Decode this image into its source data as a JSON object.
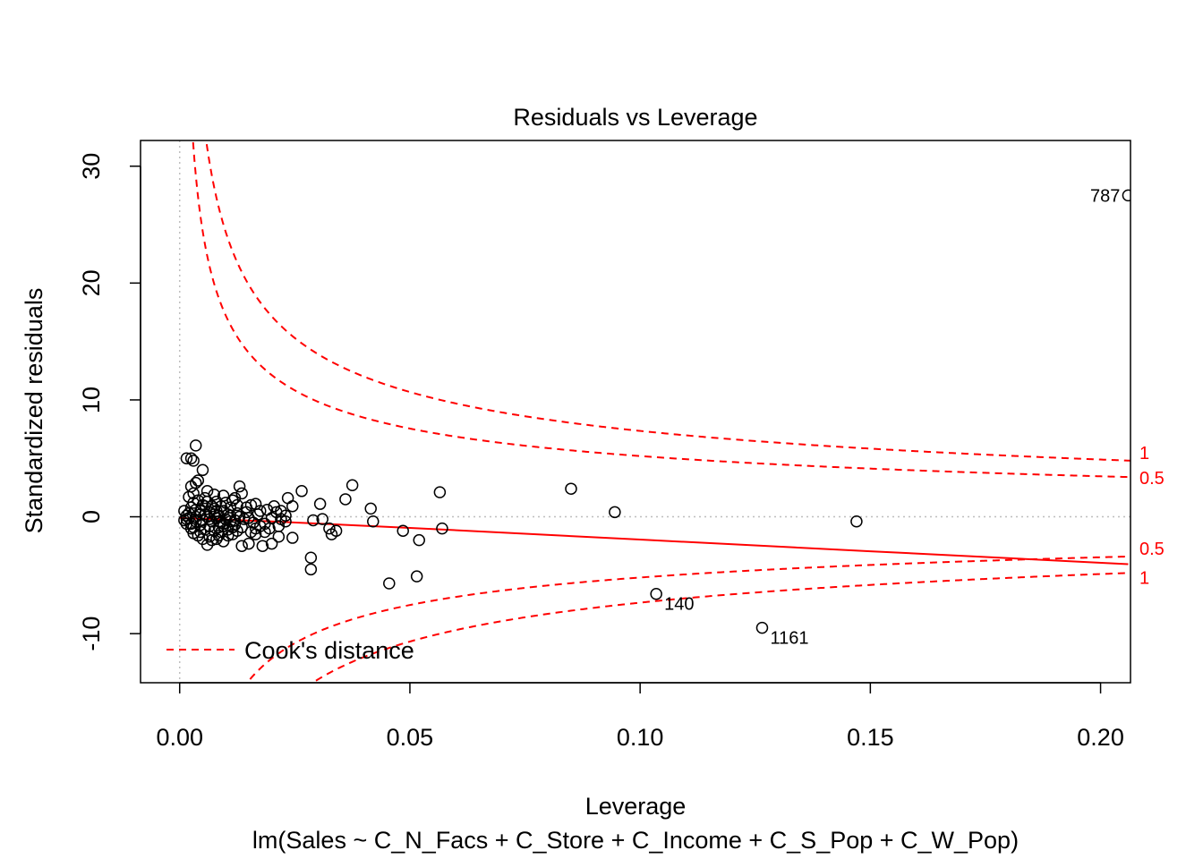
{
  "chart_data": {
    "type": "scatter",
    "title": "Residuals vs Leverage",
    "xlabel": "Leverage",
    "ylabel": "Standardized residuals",
    "subtitle": "lm(Sales ~ C_N_Facs + C_Store + C_Income + C_S_Pop + C_W_Pop)",
    "xlim": [
      -0.0085,
      0.2065
    ],
    "ylim": [
      -14.2,
      32.2
    ],
    "xticks": [
      0.0,
      0.05,
      0.1,
      0.15,
      0.2
    ],
    "xtick_labels": [
      "0.00",
      "0.05",
      "0.10",
      "0.15",
      "0.20"
    ],
    "yticks": [
      -10,
      0,
      10,
      20,
      30
    ],
    "ytick_labels": [
      "-10",
      "0",
      "10",
      "20",
      "30"
    ],
    "grid": false,
    "reference_lines": [
      {
        "axis": "x",
        "value": 0,
        "style": "dotted",
        "color": "#bebebe"
      },
      {
        "axis": "y",
        "value": 0,
        "style": "dotted",
        "color": "#bebebe"
      }
    ],
    "smooth_line": {
      "color": "#ff0000",
      "x": [
        0.0,
        0.02,
        0.05,
        0.1,
        0.15,
        0.206
      ],
      "y": [
        -0.1,
        -0.4,
        -0.95,
        -1.95,
        -2.95,
        -4.05
      ]
    },
    "cooks_distance": {
      "color": "#ff0000",
      "style": "dashed",
      "n_params": 6,
      "levels": [
        0.5,
        1
      ],
      "labels": [
        "0.5",
        "1"
      ],
      "label_positions": [
        "right-upper",
        "right-lower"
      ]
    },
    "legend": {
      "entries": [
        "Cook's distance"
      ],
      "placement": "bottom-left"
    },
    "labeled_points": [
      {
        "x": 0.206,
        "y": 27.5,
        "label": "787",
        "side": "left"
      },
      {
        "x": 0.1035,
        "y": -6.6,
        "label": "140",
        "side": "right"
      },
      {
        "x": 0.1265,
        "y": -9.5,
        "label": "1161",
        "side": "right"
      }
    ],
    "points": [
      [
        0.0015,
        5.0
      ],
      [
        0.003,
        4.8
      ],
      [
        0.0035,
        6.1
      ],
      [
        0.0025,
        5.0
      ],
      [
        0.005,
        4.0
      ],
      [
        0.004,
        3.1
      ],
      [
        0.0025,
        2.6
      ],
      [
        0.0035,
        2.9
      ],
      [
        0.006,
        2.2
      ],
      [
        0.0055,
        1.6
      ],
      [
        0.008,
        1.3
      ],
      [
        0.0075,
        1.9
      ],
      [
        0.0095,
        1.8
      ],
      [
        0.0115,
        1.4
      ],
      [
        0.013,
        2.6
      ],
      [
        0.0135,
        2.0
      ],
      [
        0.012,
        1.6
      ],
      [
        0.0155,
        1.0
      ],
      [
        0.0165,
        1.1
      ],
      [
        0.0175,
        0.5
      ],
      [
        0.019,
        0.6
      ],
      [
        0.021,
        0.4
      ],
      [
        0.022,
        0.5
      ],
      [
        0.023,
        0.1
      ],
      [
        0.0245,
        0.9
      ],
      [
        0.0235,
        1.6
      ],
      [
        0.0265,
        2.2
      ],
      [
        0.029,
        -0.3
      ],
      [
        0.0305,
        1.1
      ],
      [
        0.031,
        -0.2
      ],
      [
        0.0325,
        -1.0
      ],
      [
        0.033,
        -1.5
      ],
      [
        0.034,
        -1.2
      ],
      [
        0.036,
        1.5
      ],
      [
        0.0375,
        2.7
      ],
      [
        0.0415,
        0.7
      ],
      [
        0.042,
        -0.4
      ],
      [
        0.0455,
        -5.7
      ],
      [
        0.0485,
        -1.2
      ],
      [
        0.0515,
        -5.1
      ],
      [
        0.052,
        -2.0
      ],
      [
        0.0565,
        2.1
      ],
      [
        0.057,
        -1.0
      ],
      [
        0.0285,
        -3.5
      ],
      [
        0.0285,
        -4.5
      ],
      [
        0.0245,
        -1.8
      ],
      [
        0.0215,
        -1.7
      ],
      [
        0.02,
        -2.3
      ],
      [
        0.018,
        -2.5
      ],
      [
        0.0185,
        -1.3
      ],
      [
        0.0165,
        -1.5
      ],
      [
        0.015,
        -2.3
      ],
      [
        0.0135,
        -2.5
      ],
      [
        0.0115,
        -1.5
      ],
      [
        0.0095,
        -2.1
      ],
      [
        0.009,
        -1.3
      ],
      [
        0.008,
        -1.9
      ],
      [
        0.007,
        -2.0
      ],
      [
        0.006,
        -2.4
      ],
      [
        0.005,
        -1.9
      ],
      [
        0.004,
        -1.6
      ],
      [
        0.003,
        -1.4
      ],
      [
        0.0025,
        -1.0
      ],
      [
        0.0015,
        -0.6
      ],
      [
        0.001,
        -0.3
      ],
      [
        0.002,
        0.3
      ],
      [
        0.0025,
        0.8
      ],
      [
        0.003,
        1.2
      ],
      [
        0.0035,
        0.6
      ],
      [
        0.0045,
        0.2
      ],
      [
        0.0055,
        0.9
      ],
      [
        0.0065,
        0.4
      ],
      [
        0.0075,
        0.7
      ],
      [
        0.0085,
        0.1
      ],
      [
        0.0095,
        0.5
      ],
      [
        0.0105,
        0.2
      ],
      [
        0.011,
        -0.4
      ],
      [
        0.0125,
        0.3
      ],
      [
        0.014,
        -0.2
      ],
      [
        0.0145,
        0.4
      ],
      [
        0.016,
        -0.5
      ],
      [
        0.017,
        0.2
      ],
      [
        0.0185,
        -0.6
      ],
      [
        0.02,
        -0.1
      ],
      [
        0.0215,
        -0.8
      ],
      [
        0.023,
        -0.4
      ],
      [
        0.0135,
        -0.9
      ],
      [
        0.012,
        -0.7
      ],
      [
        0.0105,
        -1.1
      ],
      [
        0.0095,
        -0.6
      ],
      [
        0.0085,
        -0.9
      ],
      [
        0.0075,
        -1.2
      ],
      [
        0.0065,
        -0.8
      ],
      [
        0.0055,
        -1.1
      ],
      [
        0.0045,
        -0.7
      ],
      [
        0.0035,
        -0.4
      ],
      [
        0.0025,
        -0.6
      ],
      [
        0.0015,
        0.1
      ],
      [
        0.001,
        0.5
      ],
      [
        0.0015,
        -0.2
      ],
      [
        0.002,
        1.7
      ],
      [
        0.003,
        2.0
      ],
      [
        0.004,
        1.4
      ],
      [
        0.005,
        1.0
      ],
      [
        0.006,
        1.3
      ],
      [
        0.007,
        0.9
      ],
      [
        0.008,
        0.5
      ],
      [
        0.009,
        0.9
      ],
      [
        0.01,
        1.2
      ],
      [
        0.011,
        0.8
      ],
      [
        0.0125,
        1.0
      ],
      [
        0.0145,
        0.8
      ],
      [
        0.005,
        -0.3
      ],
      [
        0.006,
        0.0
      ],
      [
        0.007,
        -0.4
      ],
      [
        0.008,
        -0.1
      ],
      [
        0.009,
        -0.5
      ],
      [
        0.01,
        -0.2
      ],
      [
        0.011,
        0.1
      ],
      [
        0.012,
        -0.3
      ],
      [
        0.013,
        0.0
      ],
      [
        0.015,
        -0.1
      ],
      [
        0.0165,
        -1.0
      ],
      [
        0.0105,
        -1.6
      ],
      [
        0.0085,
        -1.6
      ],
      [
        0.0065,
        -1.7
      ],
      [
        0.0045,
        -1.3
      ],
      [
        0.003,
        -0.9
      ],
      [
        0.0035,
        0.0
      ],
      [
        0.002,
        -0.1
      ],
      [
        0.0045,
        0.5
      ],
      [
        0.0055,
        0.2
      ],
      [
        0.0065,
        -0.2
      ],
      [
        0.0075,
        0.2
      ],
      [
        0.0085,
        -0.4
      ],
      [
        0.0095,
        -0.8
      ],
      [
        0.0115,
        -0.9
      ],
      [
        0.0125,
        -1.2
      ],
      [
        0.0155,
        -1.3
      ],
      [
        0.0175,
        -0.8
      ],
      [
        0.0195,
        -1.0
      ],
      [
        0.0205,
        0.9
      ],
      [
        0.022,
        -0.2
      ],
      [
        0.085,
        2.4
      ],
      [
        0.0945,
        0.4
      ],
      [
        0.147,
        -0.4
      ]
    ]
  }
}
